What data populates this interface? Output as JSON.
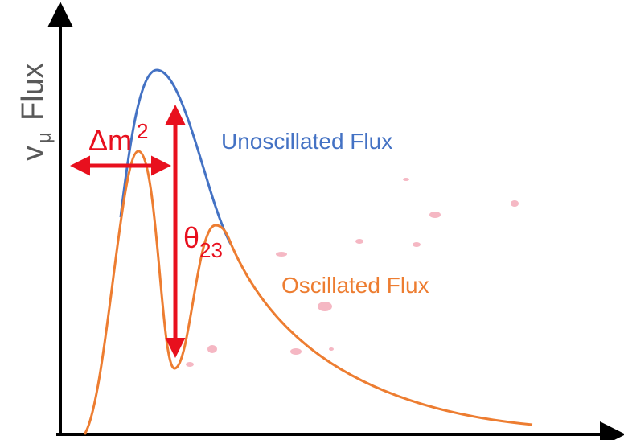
{
  "y_axis_label": {
    "symbol": "v",
    "subscript": "μ",
    "text": "Flux"
  },
  "curves": [
    {
      "label": "Unoscillated Flux"
    },
    {
      "label": "Oscillated Flux"
    }
  ],
  "annotations": [
    {
      "symbol": "Δm",
      "superscript": "2"
    },
    {
      "symbol": "θ",
      "subscript": "23"
    }
  ]
}
